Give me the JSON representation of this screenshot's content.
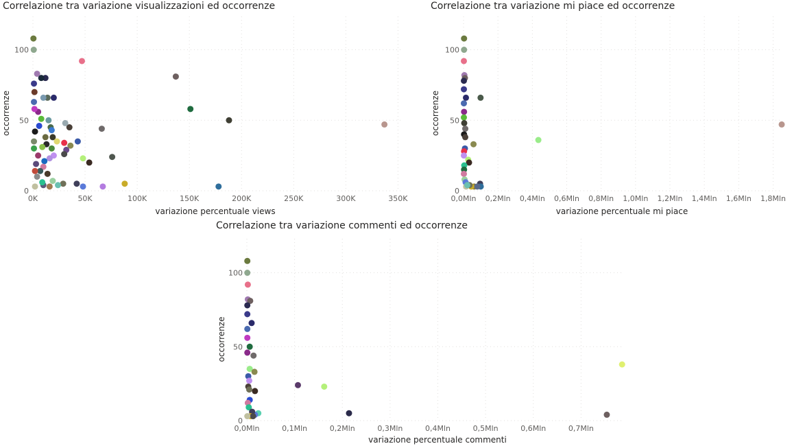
{
  "chart_data": [
    {
      "type": "scatter",
      "title": "Correlazione tra variazione visualizzazioni ed occorrenze",
      "xlabel": "variazione percentuale views",
      "ylabel": "occorrenze",
      "xlim": [
        0,
        355000
      ],
      "ylim": [
        0,
        110
      ],
      "x_ticks": [
        0,
        50000,
        100000,
        150000,
        200000,
        250000,
        300000,
        350000
      ],
      "x_tick_labels": [
        "0K",
        "50K",
        "100K",
        "150K",
        "200K",
        "250K",
        "300K",
        "350K"
      ],
      "y_ticks": [
        0,
        50,
        100
      ],
      "y_tick_labels": [
        "0",
        "50",
        "100"
      ],
      "grid": true,
      "points": [
        {
          "x": 500,
          "y": 108,
          "color": "#6b7a3f"
        },
        {
          "x": 800,
          "y": 100,
          "color": "#8fa88f"
        },
        {
          "x": 47000,
          "y": 92,
          "color": "#e8708a"
        },
        {
          "x": 137000,
          "y": 81,
          "color": "#6e6060"
        },
        {
          "x": 151000,
          "y": 58,
          "color": "#1f6b3f"
        },
        {
          "x": 188000,
          "y": 50,
          "color": "#3f3f34"
        },
        {
          "x": 337000,
          "y": 47,
          "color": "#b8968e"
        },
        {
          "x": 178000,
          "y": 3,
          "color": "#2f6e9c"
        },
        {
          "x": 88000,
          "y": 5,
          "color": "#c9ac2a"
        },
        {
          "x": 67000,
          "y": 3,
          "color": "#b37be0"
        },
        {
          "x": 66000,
          "y": 44,
          "color": "#6f6a6a"
        },
        {
          "x": 76000,
          "y": 24,
          "color": "#4f574f"
        },
        {
          "x": 54000,
          "y": 20,
          "color": "#3a2a22"
        },
        {
          "x": 48000,
          "y": 23,
          "color": "#b4f07a"
        },
        {
          "x": 48000,
          "y": 3,
          "color": "#5a7ad9"
        },
        {
          "x": 43000,
          "y": 35,
          "color": "#3b5aa8"
        },
        {
          "x": 42000,
          "y": 5,
          "color": "#3f3f5a"
        },
        {
          "x": 35000,
          "y": 45,
          "color": "#4a4038"
        },
        {
          "x": 36000,
          "y": 32,
          "color": "#8a8a50"
        },
        {
          "x": 31000,
          "y": 48,
          "color": "#9aaab0"
        },
        {
          "x": 30000,
          "y": 34,
          "color": "#e8304a"
        },
        {
          "x": 32000,
          "y": 29,
          "color": "#6a4a8a"
        },
        {
          "x": 30000,
          "y": 26,
          "color": "#4a4a4a"
        },
        {
          "x": 29000,
          "y": 5,
          "color": "#707058"
        },
        {
          "x": 20000,
          "y": 66,
          "color": "#2a2a6a"
        },
        {
          "x": 14000,
          "y": 66,
          "color": "#5a6a5a"
        },
        {
          "x": 12000,
          "y": 80,
          "color": "#2a2a50"
        },
        {
          "x": 4000,
          "y": 83,
          "color": "#a07ab0"
        },
        {
          "x": 8000,
          "y": 80,
          "color": "#1a2a3a"
        },
        {
          "x": 10000,
          "y": 66,
          "color": "#7a9ab0"
        },
        {
          "x": 15000,
          "y": 50,
          "color": "#6a9aa0"
        },
        {
          "x": 5000,
          "y": 56,
          "color": "#8a2a8a"
        },
        {
          "x": 8000,
          "y": 51,
          "color": "#5aba3a"
        },
        {
          "x": 17000,
          "y": 45,
          "color": "#4a6a4a"
        },
        {
          "x": 18000,
          "y": 43,
          "color": "#3a7ad0"
        },
        {
          "x": 6000,
          "y": 46,
          "color": "#2a4ad0"
        },
        {
          "x": 2000,
          "y": 42,
          "color": "#1a1a1a"
        },
        {
          "x": 12000,
          "y": 38,
          "color": "#6a6a40"
        },
        {
          "x": 19000,
          "y": 38,
          "color": "#3a3a2a"
        },
        {
          "x": 23000,
          "y": 35,
          "color": "#e0d870"
        },
        {
          "x": 13000,
          "y": 33,
          "color": "#2a2a2a"
        },
        {
          "x": 9000,
          "y": 31,
          "color": "#8ac04a"
        },
        {
          "x": 18000,
          "y": 30,
          "color": "#4a8a3a"
        },
        {
          "x": 20000,
          "y": 25,
          "color": "#c090f0"
        },
        {
          "x": 16000,
          "y": 23,
          "color": "#b090e0"
        },
        {
          "x": 5000,
          "y": 25,
          "color": "#9a3a6a"
        },
        {
          "x": 11000,
          "y": 21,
          "color": "#1a6ac0"
        },
        {
          "x": 3000,
          "y": 19,
          "color": "#5a4a7a"
        },
        {
          "x": 10000,
          "y": 17,
          "color": "#d07aa0"
        },
        {
          "x": 7000,
          "y": 14,
          "color": "#3a5a5a"
        },
        {
          "x": 14000,
          "y": 12,
          "color": "#4a3a2a"
        },
        {
          "x": 4000,
          "y": 10,
          "color": "#8a8a8a"
        },
        {
          "x": 19000,
          "y": 7,
          "color": "#9ad0a0"
        },
        {
          "x": 24000,
          "y": 4,
          "color": "#6ac0b0"
        },
        {
          "x": 10000,
          "y": 4,
          "color": "#5a5a7a"
        },
        {
          "x": 16000,
          "y": 3,
          "color": "#a07a50"
        },
        {
          "x": 2000,
          "y": 3,
          "color": "#c0c0a0"
        },
        {
          "x": 9000,
          "y": 6,
          "color": "#2ac090"
        },
        {
          "x": 1000,
          "y": 76,
          "color": "#3a3a8a"
        },
        {
          "x": 1500,
          "y": 70,
          "color": "#6a3a2a"
        },
        {
          "x": 1000,
          "y": 63,
          "color": "#4a6ab0"
        },
        {
          "x": 1500,
          "y": 58,
          "color": "#c03ac0"
        },
        {
          "x": 1000,
          "y": 35,
          "color": "#7a8a6a"
        },
        {
          "x": 1000,
          "y": 30,
          "color": "#3aa04a"
        },
        {
          "x": 2000,
          "y": 14,
          "color": "#c04a3a"
        }
      ]
    },
    {
      "type": "scatter",
      "title": "Correlazione tra variazione mi piace ed occorrenze",
      "xlabel": "variazione percentuale mi piace",
      "ylabel": "occorrenze",
      "xlim": [
        0,
        1850000
      ],
      "ylim": [
        0,
        110
      ],
      "x_ticks": [
        0,
        200000,
        400000,
        600000,
        800000,
        1000000,
        1200000,
        1400000,
        1600000,
        1800000
      ],
      "x_tick_labels": [
        "0,0Mln",
        "0,2Mln",
        "0,4Mln",
        "0,6Mln",
        "0,8Mln",
        "1,0Mln",
        "1,2Mln",
        "1,4Mln",
        "1,6Mln",
        "1,8Mln"
      ],
      "y_ticks": [
        0,
        50,
        100
      ],
      "y_tick_labels": [
        "0",
        "50",
        "100"
      ],
      "grid": true,
      "points": [
        {
          "x": 3000,
          "y": 108,
          "color": "#6b7a3f"
        },
        {
          "x": 3000,
          "y": 100,
          "color": "#8fa88f"
        },
        {
          "x": 2000,
          "y": 92,
          "color": "#e8708a"
        },
        {
          "x": 5000,
          "y": 82,
          "color": "#a07ab0"
        },
        {
          "x": 8000,
          "y": 80,
          "color": "#6e6060"
        },
        {
          "x": 2000,
          "y": 78,
          "color": "#2a2a50"
        },
        {
          "x": 2000,
          "y": 72,
          "color": "#3a3a8a"
        },
        {
          "x": 99000,
          "y": 66,
          "color": "#4a5a4a"
        },
        {
          "x": 14000,
          "y": 66,
          "color": "#2a2a6a"
        },
        {
          "x": 2000,
          "y": 62,
          "color": "#4a6ab0"
        },
        {
          "x": 3000,
          "y": 56,
          "color": "#8a2a8a"
        },
        {
          "x": 2000,
          "y": 52,
          "color": "#5aba3a"
        },
        {
          "x": 4000,
          "y": 48,
          "color": "#3f3f34"
        },
        {
          "x": 1850000,
          "y": 47,
          "color": "#b8968e"
        },
        {
          "x": 10000,
          "y": 44,
          "color": "#6f6a6a"
        },
        {
          "x": 3000,
          "y": 40,
          "color": "#1a1a1a"
        },
        {
          "x": 435000,
          "y": 36,
          "color": "#9aec8a"
        },
        {
          "x": 10000,
          "y": 38,
          "color": "#4a4038"
        },
        {
          "x": 58000,
          "y": 33,
          "color": "#8a8a50"
        },
        {
          "x": 8000,
          "y": 30,
          "color": "#3b5aa8"
        },
        {
          "x": 3000,
          "y": 28,
          "color": "#e8304a"
        },
        {
          "x": 2000,
          "y": 25,
          "color": "#c090f0"
        },
        {
          "x": 27000,
          "y": 22,
          "color": "#b4f07a"
        },
        {
          "x": 32000,
          "y": 20,
          "color": "#3a2a22"
        },
        {
          "x": 4000,
          "y": 18,
          "color": "#2ac090"
        },
        {
          "x": 3000,
          "y": 15,
          "color": "#1f6b3f"
        },
        {
          "x": 2000,
          "y": 12,
          "color": "#d07aa0"
        },
        {
          "x": 6000,
          "y": 8,
          "color": "#9ad0a0"
        },
        {
          "x": 12000,
          "y": 6,
          "color": "#5a7ad9"
        },
        {
          "x": 96000,
          "y": 5,
          "color": "#3f3f5a"
        },
        {
          "x": 100000,
          "y": 3,
          "color": "#2f6e9c"
        },
        {
          "x": 62000,
          "y": 3,
          "color": "#8a7a3a"
        },
        {
          "x": 45000,
          "y": 3,
          "color": "#c9ac2a"
        },
        {
          "x": 80000,
          "y": 3,
          "color": "#5a6a8a"
        },
        {
          "x": 35000,
          "y": 4,
          "color": "#707058"
        },
        {
          "x": 15000,
          "y": 3,
          "color": "#c0c0a0"
        },
        {
          "x": 22000,
          "y": 4,
          "color": "#6ac0b0"
        }
      ]
    },
    {
      "type": "scatter",
      "title": "Correlazione tra variazione commenti ed occorrenze",
      "xlabel": "variazione percentuale commenti",
      "ylabel": "occorrenze",
      "xlim": [
        0,
        790000
      ],
      "ylim": [
        0,
        110
      ],
      "x_ticks": [
        0,
        100000,
        200000,
        300000,
        400000,
        500000,
        600000,
        700000
      ],
      "x_tick_labels": [
        "0,0Mln",
        "0,1Mln",
        "0,2Mln",
        "0,3Mln",
        "0,4Mln",
        "0,5Mln",
        "0,6Mln",
        "0,7Mln"
      ],
      "y_ticks": [
        0,
        50,
        100
      ],
      "y_tick_labels": [
        "0",
        "50",
        "100"
      ],
      "grid": true,
      "points": [
        {
          "x": 1000,
          "y": 108,
          "color": "#6b7a3f"
        },
        {
          "x": 1000,
          "y": 100,
          "color": "#8fa88f"
        },
        {
          "x": 2000,
          "y": 92,
          "color": "#e8708a"
        },
        {
          "x": 2000,
          "y": 82,
          "color": "#a07ab0"
        },
        {
          "x": 7000,
          "y": 81,
          "color": "#6e6060"
        },
        {
          "x": 1000,
          "y": 78,
          "color": "#2a2a50"
        },
        {
          "x": 1000,
          "y": 72,
          "color": "#3a3a8a"
        },
        {
          "x": 10000,
          "y": 66,
          "color": "#2a2a6a"
        },
        {
          "x": 1000,
          "y": 62,
          "color": "#4a6ab0"
        },
        {
          "x": 1000,
          "y": 56,
          "color": "#c03ac0"
        },
        {
          "x": 6000,
          "y": 50,
          "color": "#1f6b3f"
        },
        {
          "x": 1000,
          "y": 46,
          "color": "#8a2a8a"
        },
        {
          "x": 14000,
          "y": 44,
          "color": "#6f6a6a"
        },
        {
          "x": 786000,
          "y": 38,
          "color": "#e0f070"
        },
        {
          "x": 6000,
          "y": 35,
          "color": "#9aec8a"
        },
        {
          "x": 16000,
          "y": 33,
          "color": "#8a8a50"
        },
        {
          "x": 3000,
          "y": 30,
          "color": "#3b5aa8"
        },
        {
          "x": 5000,
          "y": 27,
          "color": "#c090f0"
        },
        {
          "x": 107000,
          "y": 24,
          "color": "#5a3a6a"
        },
        {
          "x": 162000,
          "y": 23,
          "color": "#b4f07a"
        },
        {
          "x": 3000,
          "y": 23,
          "color": "#4a4038"
        },
        {
          "x": 17000,
          "y": 20,
          "color": "#3a2a22"
        },
        {
          "x": 5000,
          "y": 21,
          "color": "#707058"
        },
        {
          "x": 6000,
          "y": 14,
          "color": "#2a4ad0"
        },
        {
          "x": 2000,
          "y": 12,
          "color": "#d07aa0"
        },
        {
          "x": 4000,
          "y": 9,
          "color": "#2ac090"
        },
        {
          "x": 214000,
          "y": 5,
          "color": "#2a2a4a"
        },
        {
          "x": 754000,
          "y": 4,
          "color": "#6e6060"
        },
        {
          "x": 24000,
          "y": 5,
          "color": "#5ad0b0"
        },
        {
          "x": 17000,
          "y": 4,
          "color": "#5a7ad9"
        },
        {
          "x": 11000,
          "y": 6,
          "color": "#3f3f5a"
        },
        {
          "x": 8000,
          "y": 3,
          "color": "#c9ac2a"
        },
        {
          "x": 13000,
          "y": 3,
          "color": "#4a4a4a"
        },
        {
          "x": 1000,
          "y": 3,
          "color": "#c0c0a0"
        }
      ]
    }
  ]
}
